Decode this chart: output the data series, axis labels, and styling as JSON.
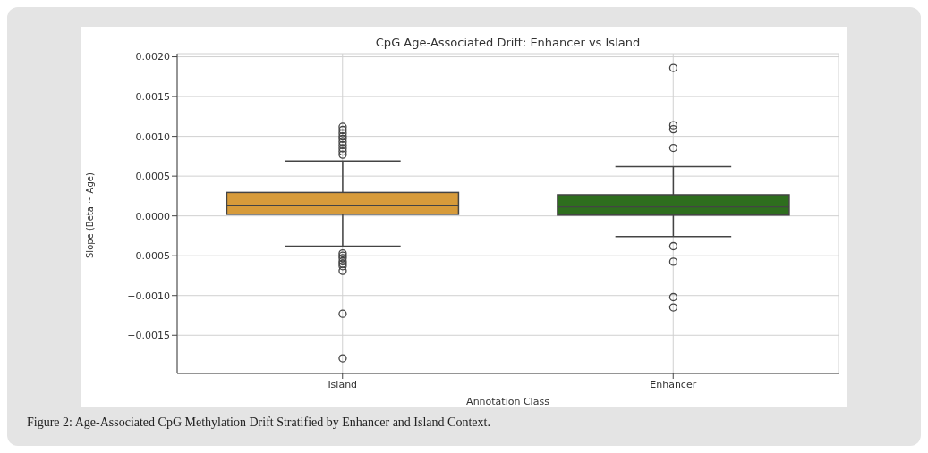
{
  "chart_data": {
    "type": "box",
    "title": "CpG Age-Associated Drift: Enhancer vs Island",
    "xlabel": "Annotation Class",
    "ylabel": "Slope (Beta ~ Age)",
    "categories": [
      "Island",
      "Enhancer"
    ],
    "colors": [
      "#d79b3a",
      "#2e6e1e"
    ],
    "boxes": [
      {
        "low": -0.00038,
        "q1": 2e-05,
        "median": 0.000135,
        "q3": 0.000295,
        "high": 0.00069,
        "outliers": [
          0.00077,
          0.00081,
          0.00085,
          0.00089,
          0.00093,
          0.00097,
          0.001,
          0.00104,
          0.00108,
          0.00112,
          -0.00047,
          -0.0005,
          -0.00053,
          -0.00057,
          -0.0006,
          -0.00063,
          -0.00069,
          -0.00123,
          -0.00179
        ]
      },
      {
        "low": -0.00026,
        "q1": 1e-05,
        "median": 0.000115,
        "q3": 0.000266,
        "high": 0.00062,
        "outliers": [
          0.00186,
          0.00114,
          0.00109,
          0.000855,
          -0.00038,
          -0.000575,
          -0.00102,
          -0.00115
        ]
      }
    ],
    "ylim": [
      -0.00198,
      0.00204
    ],
    "yticks": [
      {
        "value": -0.0015,
        "label": "−0.0015"
      },
      {
        "value": -0.001,
        "label": "−0.0010"
      },
      {
        "value": -0.0005,
        "label": "−0.0005"
      },
      {
        "value": 0,
        "label": "0.0000"
      },
      {
        "value": 0.0005,
        "label": "0.0005"
      },
      {
        "value": 0.001,
        "label": "0.0010"
      },
      {
        "value": 0.0015,
        "label": "0.0015"
      },
      {
        "value": 0.002,
        "label": "0.0020"
      }
    ],
    "grid": true,
    "annotations": [
      "Figure 2: Age-Associated CpG Methylation Drift Stratified by Enhancer and Island Context."
    ]
  }
}
